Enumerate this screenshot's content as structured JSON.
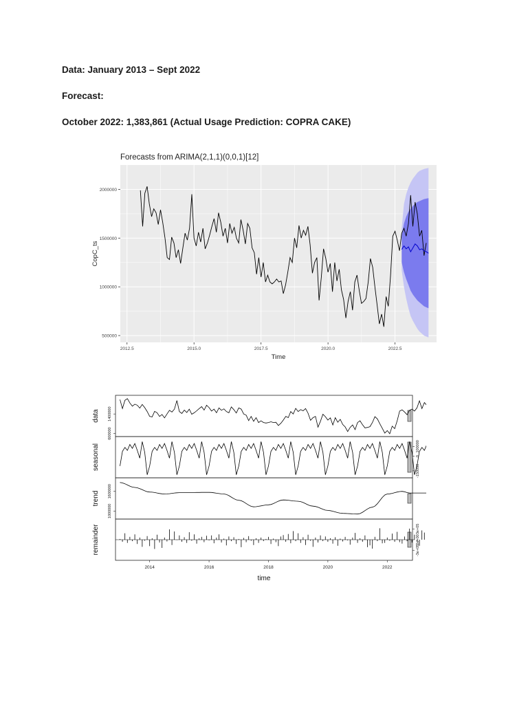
{
  "document": {
    "line1": "Data: January 2013 – Sept 2022",
    "line2": "Forecast:",
    "line3": "October 2022:  1,383,861 (Actual Usage Prediction: COPRA CAKE)"
  },
  "chart_data": [
    {
      "type": "line",
      "title": "Forecasts from ARIMA(2,1,1)(0,0,1)[12]",
      "xlabel": "Time",
      "ylabel": "CopC_ts",
      "xlim": [
        2012.25,
        2024.05
      ],
      "ylim": [
        430000,
        2250000
      ],
      "xticks": [
        2012.5,
        2015.0,
        2017.5,
        2020.0,
        2022.5
      ],
      "xtick_labels": [
        "2012.5",
        "2015.0",
        "2017.5",
        "2020.0",
        "2022.5"
      ],
      "yticks": [
        500000,
        1000000,
        1500000,
        2000000
      ],
      "ytick_labels": [
        "500000",
        "1000000",
        "1500000",
        "2000000"
      ],
      "grid": true,
      "colors": {
        "panel": "#ebebeb",
        "grid": "#ffffff",
        "line": "#000000",
        "pi95": "#c5c5f5",
        "pi80": "#7b7bee",
        "mean": "#0000cc"
      },
      "series": [
        {
          "x_start": 2013.0,
          "step": 0.08333,
          "values": [
            1990000,
            1620000,
            1960000,
            2030000,
            1850000,
            1720000,
            1800000,
            1760000,
            1640000,
            1790000,
            1660000,
            1500000,
            1300000,
            1280000,
            1510000,
            1450000,
            1300000,
            1380000,
            1240000,
            1400000,
            1550000,
            1480000,
            1600000,
            1950000,
            1500000,
            1420000,
            1560000,
            1460000,
            1600000,
            1390000,
            1450000,
            1530000,
            1620000,
            1700000,
            1560000,
            1760000,
            1660000,
            1520000,
            1600000,
            1450000,
            1650000,
            1550000,
            1610000,
            1500000,
            1450000,
            1690000,
            1580000,
            1440000,
            1650000,
            1600000,
            1400000,
            1350000,
            1130000,
            1300000,
            1100000,
            1250000,
            1050000,
            1120000,
            1050000,
            1030000,
            1050000,
            1080000,
            1050000,
            1060000,
            930000,
            1020000,
            1150000,
            1300000,
            1250000,
            1500000,
            1400000,
            1630000,
            1500000,
            1580000,
            1530000,
            1620000,
            1430000,
            1140000,
            1250000,
            1300000,
            860000,
            1100000,
            1390000,
            1290000,
            1150000,
            1240000,
            950000,
            1250000,
            1060000,
            1180000,
            970000,
            870000,
            680000,
            850000,
            950000,
            760000,
            1050000,
            1120000,
            960000,
            830000,
            850000,
            880000,
            1050000,
            1290000,
            1200000,
            1000000,
            810000,
            620000,
            720000,
            590000,
            900000,
            800000,
            1120000,
            1520000,
            1570000,
            1480000,
            1370000,
            1550000,
            1600000,
            1520000,
            1650000,
            1940000,
            1620000,
            1870000,
            1750000,
            1520000,
            1580000,
            1320000,
            1450000
          ]
        },
        {
          "name": "forecast",
          "x_start": 2022.75,
          "step": 0.08333,
          "values": [
            1383861,
            1420000,
            1390000,
            1410000,
            1360000,
            1400000,
            1440000,
            1420000,
            1380000,
            1390000,
            1370000,
            1360000,
            1345000
          ],
          "lo80": [
            1250000,
            1150000,
            1080000,
            1020000,
            960000,
            920000,
            890000,
            860000,
            840000,
            820000,
            800000,
            790000,
            780000
          ],
          "hi80": [
            1520000,
            1650000,
            1720000,
            1770000,
            1800000,
            1830000,
            1850000,
            1870000,
            1880000,
            1890000,
            1900000,
            1905000,
            1910000
          ],
          "lo95": [
            1170000,
            1000000,
            880000,
            780000,
            700000,
            650000,
            610000,
            570000,
            540000,
            520000,
            500000,
            490000,
            480000
          ],
          "hi95": [
            1600000,
            1850000,
            1950000,
            2020000,
            2070000,
            2110000,
            2140000,
            2170000,
            2190000,
            2200000,
            2210000,
            2215000,
            2220000
          ]
        }
      ]
    },
    {
      "type": "line",
      "xlabel": "time",
      "xlim": [
        2012.85,
        2022.85
      ],
      "xticks": [
        2014,
        2016,
        2018,
        2020,
        2022
      ],
      "xtick_labels": [
        "2014",
        "2016",
        "2018",
        "2020",
        "2022"
      ],
      "panels": [
        {
          "name": "data",
          "ylim": [
            560000,
            2080000
          ],
          "ytick_labels_left": [
            "600000",
            "1400000"
          ],
          "ytick_labels_right": [],
          "yticks_left": [
            600000,
            1400000
          ],
          "values": [
            1990000,
            1620000,
            1960000,
            2030000,
            1850000,
            1720000,
            1800000,
            1760000,
            1640000,
            1790000,
            1660000,
            1500000,
            1300000,
            1280000,
            1510000,
            1450000,
            1300000,
            1380000,
            1240000,
            1400000,
            1550000,
            1480000,
            1600000,
            1950000,
            1500000,
            1420000,
            1560000,
            1460000,
            1600000,
            1390000,
            1450000,
            1530000,
            1620000,
            1700000,
            1560000,
            1760000,
            1660000,
            1520000,
            1600000,
            1450000,
            1650000,
            1550000,
            1610000,
            1500000,
            1450000,
            1690000,
            1580000,
            1440000,
            1650000,
            1600000,
            1400000,
            1350000,
            1130000,
            1300000,
            1100000,
            1250000,
            1050000,
            1120000,
            1050000,
            1030000,
            1050000,
            1080000,
            1050000,
            1060000,
            930000,
            1020000,
            1150000,
            1300000,
            1250000,
            1500000,
            1400000,
            1630000,
            1500000,
            1580000,
            1530000,
            1620000,
            1430000,
            1140000,
            1250000,
            1300000,
            860000,
            1100000,
            1390000,
            1290000,
            1150000,
            1240000,
            950000,
            1250000,
            1060000,
            1180000,
            970000,
            870000,
            680000,
            850000,
            950000,
            760000,
            1050000,
            1120000,
            960000,
            830000,
            850000,
            880000,
            1050000,
            1290000,
            1200000,
            1000000,
            810000,
            620000,
            720000,
            590000,
            900000,
            800000,
            1120000,
            1520000,
            1570000,
            1480000,
            1370000,
            1550000,
            1600000,
            1520000,
            1650000,
            1940000,
            1620000,
            1870000,
            1750000,
            1520000,
            1580000,
            1320000,
            1450000
          ]
        },
        {
          "name": "seasonal",
          "ylim": [
            -200000,
            180000
          ],
          "ytick_labels_right": [
            "100000",
            "0",
            "-150000"
          ],
          "yticks_right": [
            100000,
            0,
            -150000
          ],
          "cycle": [
            -100000,
            50000,
            90000,
            60000,
            120000,
            80000,
            130000,
            60000,
            -20000,
            150000,
            40000,
            -190000
          ]
        },
        {
          "name": "trend",
          "ylim": [
            820000,
            1950000
          ],
          "ytick_labels_left": [
            "1000000",
            "1600000"
          ],
          "yticks_left": [
            1000000,
            1600000
          ],
          "knots_x": [
            2013.0,
            2013.5,
            2014.0,
            2014.5,
            2015.0,
            2016.0,
            2016.5,
            2017.0,
            2017.5,
            2018.0,
            2018.5,
            2019.0,
            2019.5,
            2020.0,
            2020.5,
            2021.0,
            2021.5,
            2022.0,
            2022.5,
            2022.75
          ],
          "knots_y": [
            1870000,
            1720000,
            1580000,
            1520000,
            1560000,
            1570000,
            1520000,
            1330000,
            1130000,
            1190000,
            1340000,
            1300000,
            1150000,
            1020000,
            930000,
            910000,
            1120000,
            1520000,
            1600000,
            1550000
          ]
        },
        {
          "name": "remainder",
          "ylim": [
            -520000,
            520000
          ],
          "ytick_labels_right": [
            "3e+05",
            "0e+00",
            "-3e+05"
          ],
          "yticks_right": [
            300000,
            0,
            -300000
          ],
          "values": [
            20000,
            -60000,
            180000,
            -90000,
            80000,
            -40000,
            150000,
            -120000,
            60000,
            -200000,
            -30000,
            100000,
            -180000,
            40000,
            -260000,
            140000,
            -80000,
            -230000,
            60000,
            -50000,
            290000,
            -150000,
            230000,
            -10000,
            120000,
            -60000,
            70000,
            -90000,
            210000,
            -30000,
            150000,
            -110000,
            40000,
            80000,
            -70000,
            110000,
            -20000,
            120000,
            -100000,
            60000,
            150000,
            -80000,
            30000,
            -160000,
            90000,
            -40000,
            70000,
            -120000,
            20000,
            -210000,
            50000,
            -70000,
            100000,
            -30000,
            -150000,
            40000,
            -90000,
            60000,
            -40000,
            20000,
            80000,
            -120000,
            30000,
            -70000,
            -180000,
            90000,
            130000,
            -60000,
            160000,
            -100000,
            240000,
            -40000,
            180000,
            -90000,
            70000,
            -150000,
            140000,
            -30000,
            -200000,
            60000,
            -80000,
            120000,
            -40000,
            90000,
            -60000,
            40000,
            -110000,
            70000,
            -170000,
            30000,
            -50000,
            80000,
            -20000,
            -140000,
            60000,
            190000,
            -90000,
            40000,
            -60000,
            120000,
            -210000,
            -160000,
            -250000,
            80000,
            -40000,
            320000,
            -100000,
            -90000,
            60000,
            -30000,
            170000,
            -60000,
            220000,
            -70000,
            -110000,
            90000,
            -40000,
            310000,
            -80000,
            140000,
            -50000,
            -170000,
            260000,
            200000,
            -140000,
            90000,
            -60000,
            -190000,
            120000,
            -280000
          ]
        }
      ]
    }
  ]
}
